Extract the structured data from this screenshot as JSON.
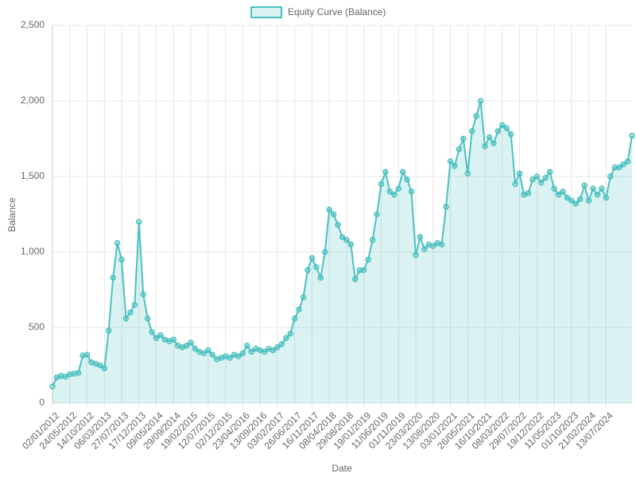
{
  "chart_data": {
    "type": "line",
    "legend": "top",
    "grid": true,
    "x_label": "Date",
    "y_label": "Balance",
    "ylim": [
      0,
      2500
    ],
    "yticks": [
      0,
      500,
      {
        "value": 1000,
        "label": "1,000"
      },
      {
        "value": 1500,
        "label": "1,500"
      },
      {
        "value": 2000,
        "label": "2,000"
      },
      {
        "value": 2500,
        "label": "2,500"
      }
    ],
    "categories": [
      "02/01/2012",
      null,
      null,
      null,
      "24/05/2012",
      null,
      null,
      null,
      "14/10/2012",
      null,
      null,
      null,
      "06/03/2013",
      null,
      null,
      null,
      "27/07/2013",
      null,
      null,
      null,
      "17/12/2013",
      null,
      null,
      null,
      "09/05/2014",
      null,
      null,
      null,
      "29/09/2014",
      null,
      null,
      null,
      "19/02/2015",
      null,
      null,
      null,
      "12/07/2015",
      null,
      null,
      null,
      "02/12/2015",
      null,
      null,
      null,
      "23/04/2016",
      null,
      null,
      null,
      "13/09/2016",
      null,
      null,
      null,
      "03/02/2017",
      null,
      null,
      null,
      "26/06/2017",
      null,
      null,
      null,
      "16/11/2017",
      null,
      null,
      null,
      "08/04/2018",
      null,
      null,
      null,
      "29/08/2018",
      null,
      null,
      null,
      "19/01/2019",
      null,
      null,
      null,
      "11/06/2019",
      null,
      null,
      null,
      "01/11/2019",
      null,
      null,
      null,
      "23/03/2020",
      null,
      null,
      null,
      "13/08/2020",
      null,
      null,
      null,
      "03/01/2021",
      null,
      null,
      null,
      "26/05/2021",
      null,
      null,
      null,
      "16/10/2021",
      null,
      null,
      null,
      "08/03/2022",
      null,
      null,
      null,
      "29/07/2022",
      null,
      null,
      null,
      "19/12/2022",
      null,
      null,
      null,
      "11/05/2023",
      null,
      null,
      null,
      "01/10/2023",
      null,
      null,
      null,
      "21/02/2024",
      null,
      null,
      null,
      "13/07/2024",
      null,
      null,
      null,
      null,
      null,
      null
    ],
    "series": [
      {
        "name": "Equity Curve (Balance)",
        "color": "#4bc0c0",
        "values": [
          110,
          170,
          180,
          175,
          190,
          195,
          200,
          315,
          320,
          270,
          260,
          250,
          230,
          480,
          830,
          1060,
          950,
          560,
          600,
          650,
          1200,
          720,
          560,
          470,
          430,
          450,
          420,
          410,
          420,
          380,
          370,
          380,
          400,
          360,
          340,
          330,
          350,
          320,
          290,
          300,
          310,
          300,
          320,
          310,
          330,
          380,
          340,
          360,
          350,
          340,
          360,
          350,
          370,
          390,
          430,
          460,
          560,
          620,
          700,
          880,
          960,
          900,
          830,
          1000,
          1280,
          1250,
          1180,
          1100,
          1080,
          1050,
          820,
          880,
          880,
          950,
          1080,
          1250,
          1450,
          1530,
          1400,
          1380,
          1420,
          1530,
          1480,
          1400,
          980,
          1100,
          1020,
          1050,
          1040,
          1060,
          1050,
          1300,
          1600,
          1570,
          1680,
          1750,
          1520,
          1800,
          1900,
          2000,
          1700,
          1760,
          1720,
          1800,
          1840,
          1820,
          1780,
          1450,
          1520,
          1380,
          1390,
          1480,
          1500,
          1460,
          1490,
          1530,
          1420,
          1380,
          1400,
          1360,
          1340,
          1320,
          1350,
          1440,
          1340,
          1420,
          1380,
          1420,
          1360,
          1500,
          1560,
          1560,
          1580,
          1600,
          1770
        ]
      }
    ]
  }
}
